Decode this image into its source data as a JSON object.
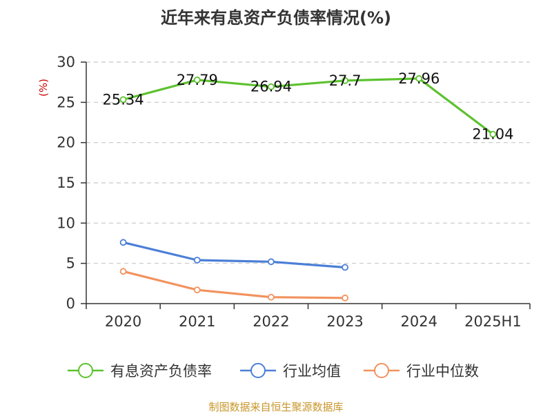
{
  "chart_data": {
    "type": "line",
    "title": "近年来有息资产负债率情况(%)",
    "ylabel": "(%)",
    "categories": [
      "2020",
      "2021",
      "2022",
      "2023",
      "2024",
      "2025H1"
    ],
    "ylim": [
      0,
      30
    ],
    "yticks": [
      0,
      5,
      10,
      15,
      20,
      25,
      30
    ],
    "grid": true,
    "legend_position": "bottom",
    "series": [
      {
        "name": "有息资产负债率",
        "color": "#5cc12e",
        "values": [
          25.34,
          27.79,
          26.94,
          27.7,
          27.96,
          21.04
        ],
        "labels": [
          "25.34",
          "27.79",
          "26.94",
          "27.7",
          "27.96",
          "21.04"
        ]
      },
      {
        "name": "行业均值",
        "color": "#4b7fd6",
        "values": [
          7.6,
          5.4,
          5.2,
          4.5,
          null,
          null
        ]
      },
      {
        "name": "行业中位数",
        "color": "#f2925e",
        "values": [
          4.0,
          1.7,
          0.8,
          0.7,
          null,
          null
        ]
      }
    ]
  },
  "source": "制图数据来自恒生聚源数据库"
}
